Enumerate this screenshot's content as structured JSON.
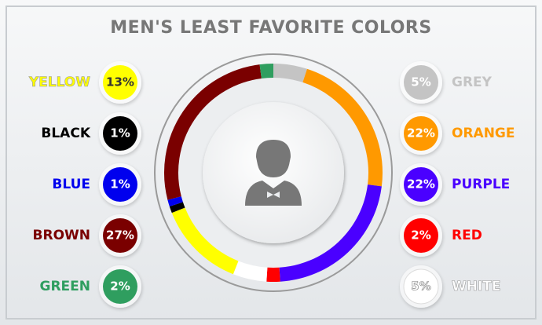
{
  "chart_data": {
    "type": "donut",
    "title": "MEN'S LEAST FAVORITE COLORS",
    "categories": [
      "GREY",
      "ORANGE",
      "PURPLE",
      "RED",
      "WHITE",
      "YELLOW",
      "BLACK",
      "BLUE",
      "BROWN",
      "GREEN"
    ],
    "values": [
      5,
      22,
      22,
      2,
      5,
      13,
      1,
      1,
      27,
      2
    ],
    "value_labels": [
      "5%",
      "22%",
      "22%",
      "2%",
      "5%",
      "13%",
      "1%",
      "1%",
      "27%",
      "2%"
    ],
    "colors": [
      "#c4c4c4",
      "#ff9900",
      "#4a00ff",
      "#ff0000",
      "#ffffff",
      "#ffff00",
      "#000000",
      "#0000ee",
      "#7a0000",
      "#2f9e5f"
    ]
  }
}
